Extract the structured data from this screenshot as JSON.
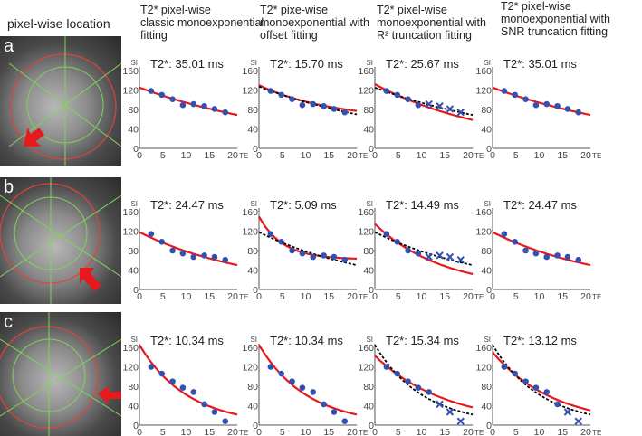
{
  "left_column_title": "pixel-wise location",
  "column_headers": [
    "T2* pixel-wise\nclassic monoexponential\nfitting",
    "T2* pixe-wise\nmonoexponential with\noffset fitting",
    "T2* pixel-wise\nmonoexponential with\nR² truncation fitting",
    "T2* pixel-wise\nmonoexponential with\nSNR  truncation fitting"
  ],
  "row_labels": [
    "a",
    "b",
    "c"
  ],
  "colors": {
    "fit": "#e8191c",
    "points": "#3352b0",
    "reference": "#000000",
    "contour": "#e0433a",
    "grid": "#7fd45a"
  },
  "chart_data": {
    "type": "scatter",
    "xlabel": "TE",
    "ylabel": "SI",
    "xlim": [
      0,
      21
    ],
    "ylim": [
      0,
      160
    ],
    "x_ticks": [
      "0",
      "5",
      "10",
      "15",
      "20"
    ],
    "y_ticks": [
      "0",
      "40",
      "80",
      "120",
      "160"
    ],
    "te": [
      2.5,
      4.8,
      7.1,
      9.3,
      11.6,
      13.9,
      16.1,
      18.4
    ],
    "rows": [
      {
        "si": [
          118,
          110,
          101,
          89,
          91,
          87,
          81,
          74
        ],
        "panels": [
          {
            "t2_label": "T2*: 35.01 ms",
            "fit": {
              "s0": 125,
              "t2": 35.01,
              "offset": 0
            },
            "ref": null,
            "excluded": []
          },
          {
            "t2_label": "T2*: 15.70 ms",
            "fit": {
              "s0": 72,
              "t2": 15.7,
              "offset": 58
            },
            "ref": {
              "s0": 127,
              "t2": 35.01,
              "offset": 0
            },
            "excluded": []
          },
          {
            "t2_label": "T2*: 25.67 ms",
            "fit": {
              "s0": 132,
              "t2": 25.67,
              "offset": 0
            },
            "ref": {
              "s0": 125,
              "t2": 35.01,
              "offset": 0
            },
            "excluded": [
              4,
              5,
              6,
              7
            ]
          },
          {
            "t2_label": "T2*: 35.01 ms",
            "fit": {
              "s0": 125,
              "t2": 35.01,
              "offset": 0
            },
            "ref": null,
            "excluded": []
          }
        ]
      },
      {
        "si": [
          114,
          98,
          80,
          74,
          67,
          70,
          67,
          61
        ],
        "panels": [
          {
            "t2_label": "T2*: 24.47 ms",
            "fit": {
              "s0": 118,
              "t2": 24.47,
              "offset": 0
            },
            "ref": null,
            "excluded": []
          },
          {
            "t2_label": "T2*: 5.09 ms",
            "fit": {
              "s0": 88,
              "t2": 5.09,
              "offset": 62
            },
            "ref": {
              "s0": 118,
              "t2": 24.47,
              "offset": 0
            },
            "excluded": []
          },
          {
            "t2_label": "T2*: 14.49 ms",
            "fit": {
              "s0": 135,
              "t2": 14.49,
              "offset": 0
            },
            "ref": {
              "s0": 118,
              "t2": 24.47,
              "offset": 0
            },
            "excluded": [
              4,
              5,
              6,
              7
            ]
          },
          {
            "t2_label": "T2*: 24.47 ms",
            "fit": {
              "s0": 118,
              "t2": 24.47,
              "offset": 0
            },
            "ref": null,
            "excluded": []
          }
        ]
      },
      {
        "si": [
          120,
          106,
          90,
          77,
          68,
          43,
          27,
          8
        ],
        "panels": [
          {
            "t2_label": "T2*: 10.34 ms",
            "fit": {
              "s0": 165,
              "t2": 10.34,
              "offset": 0
            },
            "ref": null,
            "excluded": []
          },
          {
            "t2_label": "T2*: 10.34 ms",
            "fit": {
              "s0": 165,
              "t2": 10.34,
              "offset": 0
            },
            "ref": null,
            "excluded": []
          },
          {
            "t2_label": "T2*: 15.34 ms",
            "fit": {
              "s0": 143,
              "t2": 15.34,
              "offset": 0
            },
            "ref": {
              "s0": 165,
              "t2": 10.34,
              "offset": 0
            },
            "excluded": [
              5,
              6,
              7
            ]
          },
          {
            "t2_label": "T2*: 13.12 ms",
            "fit": {
              "s0": 150,
              "t2": 13.12,
              "offset": 0
            },
            "ref": {
              "s0": 165,
              "t2": 10.34,
              "offset": 0
            },
            "excluded": [
              6,
              7
            ]
          }
        ]
      }
    ]
  }
}
